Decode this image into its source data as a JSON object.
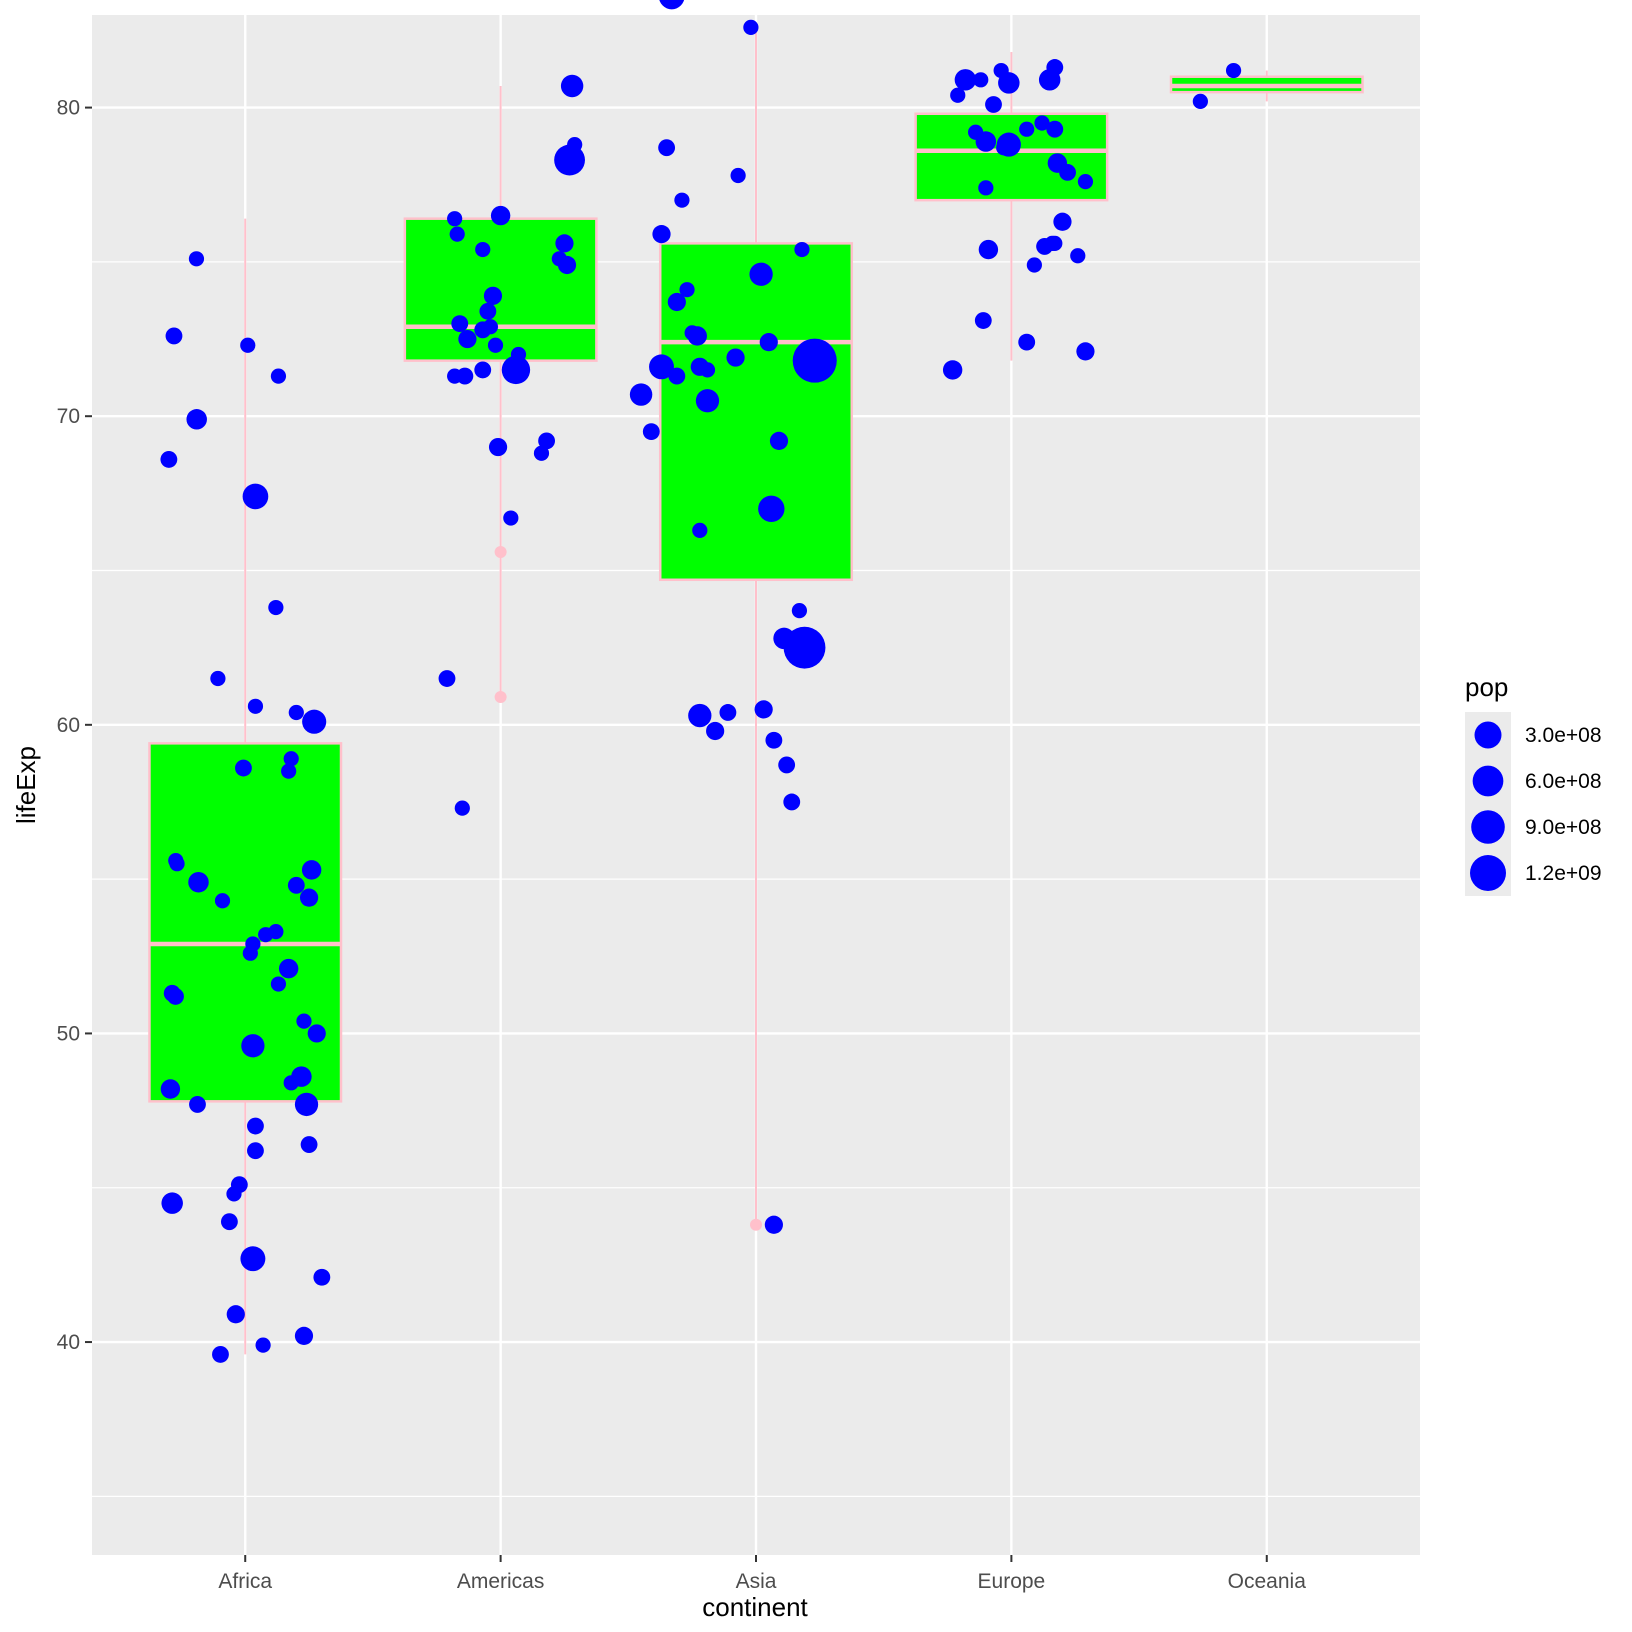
{
  "chart_data": {
    "type": "boxplot",
    "title": "",
    "xlabel": "continent",
    "ylabel": "lifeExp",
    "categories": [
      "Africa",
      "Americas",
      "Asia",
      "Europe",
      "Oceania"
    ],
    "ylim": [
      33.1,
      83.0
    ],
    "y_ticks": [
      40,
      50,
      60,
      70,
      80
    ],
    "grid": true,
    "colors": {
      "panel_background": "#ebebeb",
      "grid": "#ffffff",
      "box_fill": "#00ff00",
      "box_outline": "#ffc0cb",
      "points": "#0000ff",
      "axis_text": "#4d4d4d"
    },
    "boxes": [
      {
        "category": "Africa",
        "lower": 39.6,
        "q1": 47.8,
        "median": 52.9,
        "q3": 59.4,
        "upper": 76.4,
        "outliers": []
      },
      {
        "category": "Americas",
        "lower": 60.9,
        "q1": 71.8,
        "median": 72.9,
        "q3": 76.4,
        "upper": 80.7,
        "outliers": [
          65.6,
          60.9
        ]
      },
      {
        "category": "Asia",
        "lower": 43.8,
        "q1": 64.7,
        "median": 72.4,
        "q3": 75.6,
        "upper": 82.6,
        "outliers": [
          43.8
        ]
      },
      {
        "category": "Europe",
        "lower": 71.8,
        "q1": 77.0,
        "median": 78.6,
        "q3": 79.8,
        "upper": 81.8,
        "outliers": []
      },
      {
        "category": "Oceania",
        "lower": 80.2,
        "q1": 80.5,
        "median": 80.7,
        "q3": 81.0,
        "upper": 81.2,
        "outliers": []
      }
    ],
    "points_series": {
      "name": "pop",
      "x_unit": "continent index (1-5) with horizontal jitter",
      "points": [
        [
          0.809,
          75.1,
          2
        ],
        [
          0.721,
          72.6,
          3
        ],
        [
          0.81,
          69.9,
          6
        ],
        [
          0.701,
          68.6,
          3
        ],
        [
          1.01,
          72.3,
          2
        ],
        [
          1.13,
          71.3,
          2
        ],
        [
          1.04,
          67.4,
          12
        ],
        [
          1.12,
          63.8,
          2
        ],
        [
          0.893,
          61.5,
          2
        ],
        [
          1.04,
          60.6,
          2
        ],
        [
          1.2,
          60.4,
          2
        ],
        [
          1.27,
          60.1,
          10
        ],
        [
          0.993,
          58.6,
          3
        ],
        [
          1.18,
          58.9,
          2
        ],
        [
          1.17,
          58.5,
          2
        ],
        [
          0.733,
          55.5,
          2
        ],
        [
          0.728,
          55.6,
          2
        ],
        [
          0.817,
          54.9,
          6
        ],
        [
          0.911,
          54.3,
          2
        ],
        [
          1.26,
          55.3,
          5
        ],
        [
          1.2,
          54.8,
          3
        ],
        [
          1.25,
          54.4,
          4
        ],
        [
          1.12,
          53.3,
          2
        ],
        [
          1.08,
          53.2,
          2
        ],
        [
          1.03,
          52.9,
          2
        ],
        [
          1.02,
          52.6,
          2
        ],
        [
          1.17,
          52.1,
          5
        ],
        [
          0.727,
          51.2,
          3
        ],
        [
          0.714,
          51.3,
          3
        ],
        [
          1.13,
          51.6,
          2
        ],
        [
          1.23,
          50.4,
          2
        ],
        [
          1.28,
          50.0,
          4
        ],
        [
          1.03,
          49.6,
          9
        ],
        [
          0.707,
          48.2,
          5
        ],
        [
          0.813,
          47.7,
          3
        ],
        [
          1.22,
          48.6,
          6
        ],
        [
          1.18,
          48.4,
          2
        ],
        [
          1.24,
          47.7,
          9
        ],
        [
          1.04,
          47.0,
          3
        ],
        [
          1.25,
          46.4,
          3
        ],
        [
          1.04,
          46.2,
          3
        ],
        [
          0.977,
          45.1,
          3
        ],
        [
          0.956,
          44.8,
          2
        ],
        [
          0.714,
          44.5,
          7
        ],
        [
          0.938,
          43.9,
          3
        ],
        [
          1.03,
          42.7,
          11
        ],
        [
          1.3,
          42.1,
          3
        ],
        [
          0.963,
          40.9,
          4
        ],
        [
          1.23,
          40.2,
          4
        ],
        [
          1.07,
          39.9,
          2
        ],
        [
          0.903,
          39.6,
          3
        ],
        [
          1.82,
          76.4,
          2
        ],
        [
          1.83,
          75.9,
          2
        ],
        [
          2.0,
          76.5,
          5
        ],
        [
          1.93,
          75.4,
          2
        ],
        [
          1.97,
          73.9,
          4
        ],
        [
          2.23,
          75.1,
          2
        ],
        [
          2.25,
          75.6,
          4
        ],
        [
          2.26,
          74.9,
          4
        ],
        [
          2.27,
          78.3,
          20
        ],
        [
          2.29,
          78.8,
          2
        ],
        [
          2.28,
          80.7,
          8
        ],
        [
          1.95,
          73.4,
          3
        ],
        [
          1.96,
          72.9,
          2
        ],
        [
          1.93,
          72.8,
          3
        ],
        [
          1.84,
          73.0,
          3
        ],
        [
          1.98,
          72.3,
          2
        ],
        [
          1.87,
          72.5,
          4
        ],
        [
          1.86,
          71.3,
          3
        ],
        [
          1.82,
          71.3,
          2
        ],
        [
          1.93,
          71.5,
          3
        ],
        [
          2.06,
          71.5,
          16
        ],
        [
          2.07,
          72.0,
          2
        ],
        [
          1.99,
          69.0,
          4
        ],
        [
          2.18,
          69.2,
          3
        ],
        [
          2.16,
          68.8,
          2
        ],
        [
          2.04,
          66.7,
          2
        ],
        [
          1.79,
          61.5,
          3
        ],
        [
          1.85,
          57.3,
          2
        ],
        [
          2.67,
          83.6,
          12
        ],
        [
          2.98,
          82.6,
          2
        ],
        [
          2.65,
          78.7,
          3
        ],
        [
          2.93,
          77.8,
          2
        ],
        [
          2.71,
          77.0,
          2
        ],
        [
          2.63,
          75.9,
          4
        ],
        [
          3.02,
          74.6,
          9
        ],
        [
          2.73,
          74.1,
          2
        ],
        [
          3.18,
          75.4,
          2
        ],
        [
          2.69,
          73.7,
          4
        ],
        [
          2.75,
          72.7,
          2
        ],
        [
          3.05,
          72.4,
          4
        ],
        [
          2.63,
          71.6,
          11
        ],
        [
          2.81,
          71.5,
          2
        ],
        [
          2.77,
          72.6,
          5
        ],
        [
          2.69,
          71.3,
          3
        ],
        [
          2.92,
          71.9,
          4
        ],
        [
          3.23,
          71.8,
          50
        ],
        [
          2.78,
          71.6,
          4
        ],
        [
          2.81,
          70.5,
          9
        ],
        [
          2.55,
          70.7,
          8
        ],
        [
          2.59,
          69.5,
          3
        ],
        [
          3.09,
          69.2,
          4
        ],
        [
          3.06,
          67.0,
          13
        ],
        [
          2.78,
          66.3,
          2
        ],
        [
          3.17,
          63.7,
          2
        ],
        [
          3.11,
          62.8,
          7
        ],
        [
          3.19,
          62.5,
          44
        ],
        [
          2.78,
          60.3,
          9
        ],
        [
          2.89,
          60.4,
          3
        ],
        [
          3.03,
          60.5,
          4
        ],
        [
          2.84,
          59.8,
          4
        ],
        [
          3.12,
          58.7,
          3
        ],
        [
          3.07,
          59.5,
          3
        ],
        [
          3.14,
          57.5,
          3
        ],
        [
          3.07,
          43.8,
          4
        ],
        [
          3.82,
          80.9,
          7
        ],
        [
          3.79,
          80.4,
          2
        ],
        [
          3.88,
          80.9,
          2
        ],
        [
          3.96,
          81.2,
          2
        ],
        [
          3.99,
          80.8,
          7
        ],
        [
          4.15,
          80.9,
          7
        ],
        [
          4.17,
          81.3,
          3
        ],
        [
          3.93,
          80.1,
          3
        ],
        [
          3.86,
          79.2,
          2
        ],
        [
          3.9,
          78.9,
          6
        ],
        [
          3.97,
          78.7,
          2
        ],
        [
          3.99,
          78.8,
          10
        ],
        [
          4.06,
          79.3,
          2
        ],
        [
          4.12,
          79.5,
          2
        ],
        [
          4.17,
          79.3,
          3
        ],
        [
          4.18,
          78.2,
          5
        ],
        [
          4.22,
          77.9,
          3
        ],
        [
          4.29,
          77.6,
          2
        ],
        [
          3.9,
          77.4,
          2
        ],
        [
          4.2,
          76.3,
          4
        ],
        [
          4.13,
          75.5,
          3
        ],
        [
          4.16,
          75.6,
          2
        ],
        [
          4.17,
          75.6,
          2
        ],
        [
          4.26,
          75.2,
          2
        ],
        [
          3.91,
          75.4,
          5
        ],
        [
          4.09,
          74.9,
          2
        ],
        [
          3.89,
          73.1,
          3
        ],
        [
          4.06,
          72.4,
          3
        ],
        [
          4.29,
          72.1,
          4
        ],
        [
          3.77,
          71.5,
          5
        ],
        [
          4.74,
          80.2,
          2
        ],
        [
          4.87,
          81.2,
          2
        ]
      ]
    },
    "legend": {
      "title": "pop",
      "placement": "right",
      "entries": [
        {
          "label": "3.0e+08",
          "value": 300000000
        },
        {
          "label": "6.0e+08",
          "value": 600000000
        },
        {
          "label": "9.0e+08",
          "value": 900000000
        },
        {
          "label": "1.2e+09",
          "value": 1200000000
        }
      ]
    }
  }
}
